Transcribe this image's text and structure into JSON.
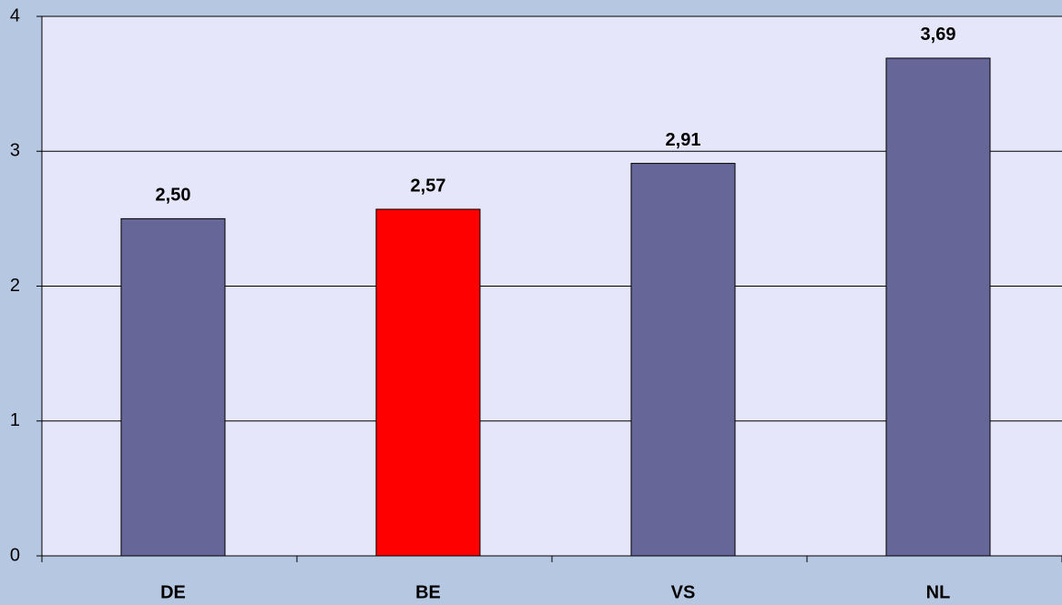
{
  "chart_data": {
    "type": "bar",
    "categories": [
      "DE",
      "BE",
      "VS",
      "NL"
    ],
    "values": [
      2.5,
      2.57,
      2.91,
      3.69
    ],
    "value_labels": [
      "2,50",
      "2,57",
      "2,91",
      "3,69"
    ],
    "colors": [
      "#666699",
      "#ff0000",
      "#666699",
      "#666699"
    ],
    "ylim": [
      0,
      4
    ],
    "yticks": [
      0,
      1,
      2,
      3,
      4
    ],
    "grid": true
  }
}
